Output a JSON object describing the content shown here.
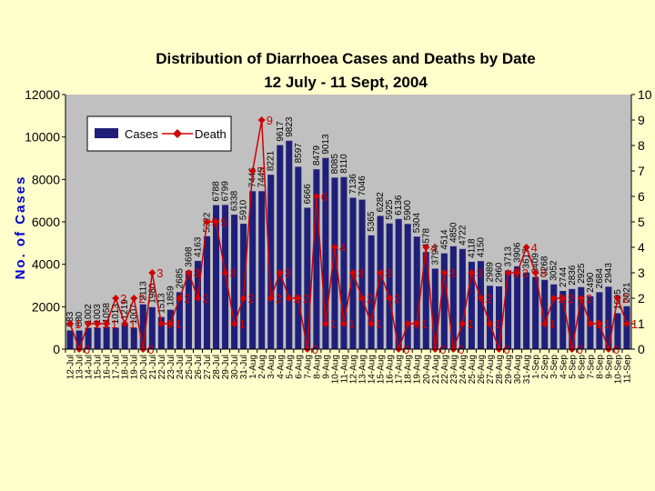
{
  "chart_data": {
    "type": "bar+line",
    "title": "Distribution of Diarrhoea Cases and Deaths by Date",
    "subtitle": "12 July - 11 Sept, 2004",
    "ylabel": "No. of Cases",
    "ylim": [
      0,
      12000
    ],
    "y2lim": [
      0,
      10
    ],
    "yticks": [
      "0",
      "2000",
      "4000",
      "6000",
      "8000",
      "10000",
      "12000"
    ],
    "y2ticks": [
      "0",
      "1",
      "2",
      "3",
      "4",
      "5",
      "6",
      "7",
      "8",
      "9",
      "10"
    ],
    "legend_position": "top-left",
    "grid": false,
    "colors": {
      "cases": "#1f1f7a",
      "death": "#d00000",
      "plot_bg": "#c0c0c0",
      "page_bg": "#ffffcc"
    },
    "categories": [
      "12-Jul",
      "13-Jul",
      "14-Jul",
      "15-Jul",
      "16-Jul",
      "17-Jul",
      "18-Jul",
      "19-Jul",
      "20-Jul",
      "21-Jul",
      "22-Jul",
      "23-Jul",
      "24-Jul",
      "25-Jul",
      "26-Jul",
      "27-Jul",
      "28-Jul",
      "29-Jul",
      "30-Jul",
      "31-Jul",
      "1-Aug",
      "2-Aug",
      "3-Aug",
      "4-Aug",
      "5-Aug",
      "6-Aug",
      "7-Aug",
      "8-Aug",
      "9-Aug",
      "10-Aug",
      "11-Aug",
      "12-Aug",
      "13-Aug",
      "14-Aug",
      "15-Aug",
      "16-Aug",
      "17-Aug",
      "18-Aug",
      "19-Aug",
      "20-Aug",
      "21-Aug",
      "22-Aug",
      "23-Aug",
      "24-Aug",
      "25-Aug",
      "26-Aug",
      "27-Aug",
      "28-Aug",
      "29-Aug",
      "30-Aug",
      "31-Aug",
      "1-Sep",
      "2-Sep",
      "3-Sep",
      "4-Sep",
      "5-Sep",
      "6-Sep",
      "7-Sep",
      "8-Sep",
      "9-Sep",
      "10-Sep",
      "11-Sep"
    ],
    "series": [
      {
        "name": "Cases",
        "values": [
          883,
          880,
          1002,
          1003,
          1058,
          1013,
          1219,
          1007,
          2113,
          1980,
          1513,
          1859,
          2685,
          3698,
          4163,
          5322,
          6788,
          6799,
          6338,
          5910,
          7446,
          7445,
          8221,
          9617,
          9823,
          8597,
          6666,
          8479,
          9013,
          8085,
          8110,
          7136,
          7046,
          5365,
          6282,
          5925,
          6136,
          5900,
          5304,
          4578,
          3794,
          4514,
          4850,
          4722,
          4118,
          4150,
          2989,
          2960,
          3713,
          3906,
          3617,
          3409,
          3268,
          3052,
          2744,
          2836,
          2925,
          2490,
          2684,
          2943,
          1695,
          2021
        ],
        "labels": [
          "883",
          "880",
          "1002",
          "1003",
          "1058",
          "1013",
          "1219",
          "1007",
          "2113",
          "1980",
          "1513",
          "1859",
          "2685",
          "3698",
          "4163",
          "5322",
          "6788",
          "6799",
          "6338",
          "5910",
          "7446",
          "7445",
          "8221",
          "9617",
          "9823",
          "8597",
          "6666",
          "8479",
          "9013",
          "8085",
          "8110",
          "7136",
          "7046",
          "5365",
          "6282",
          "5925",
          "6136",
          "5900",
          "5304",
          "4578",
          "3794",
          "4514",
          "4850",
          "4722",
          "4118",
          "4150",
          "2989",
          "2960",
          "3713",
          "3906",
          "3617",
          "3409",
          "3268",
          "3052",
          "2744",
          "2836",
          "2925",
          "2490",
          "2684",
          "2943",
          "1695",
          "2021"
        ]
      },
      {
        "name": "Death",
        "values": [
          1,
          0,
          1,
          1,
          1,
          2,
          1,
          2,
          0,
          3,
          1,
          1,
          2,
          3,
          2,
          5,
          5,
          3,
          1,
          2,
          7,
          9,
          2,
          3,
          2,
          2,
          0,
          6,
          1,
          4,
          1,
          3,
          2,
          1,
          3,
          2,
          0,
          1,
          1,
          4,
          0,
          3,
          0,
          1,
          3,
          2,
          1,
          0,
          3,
          3,
          4,
          3,
          1,
          2,
          2,
          0,
          2,
          1,
          1,
          0,
          2,
          1
        ],
        "labels": [
          "1",
          "0",
          "1",
          "1",
          "1",
          "2",
          "1",
          "2",
          "0",
          "3",
          "1",
          "1",
          "2",
          "3",
          "2",
          "5",
          "5",
          "3",
          "1",
          "2",
          "7",
          "9",
          "2",
          "3",
          "2",
          "2",
          "0",
          "6",
          "1",
          "4",
          "1",
          "3",
          "2",
          "1",
          "3",
          "2",
          "0",
          "1",
          "1",
          "4",
          "0",
          "3",
          "0",
          "1",
          "3",
          "2",
          "1",
          "0",
          "3",
          "3",
          "4",
          "3",
          "1",
          "2",
          "2",
          "0",
          "2",
          "1",
          "1",
          "0",
          "2",
          "1"
        ]
      }
    ]
  }
}
